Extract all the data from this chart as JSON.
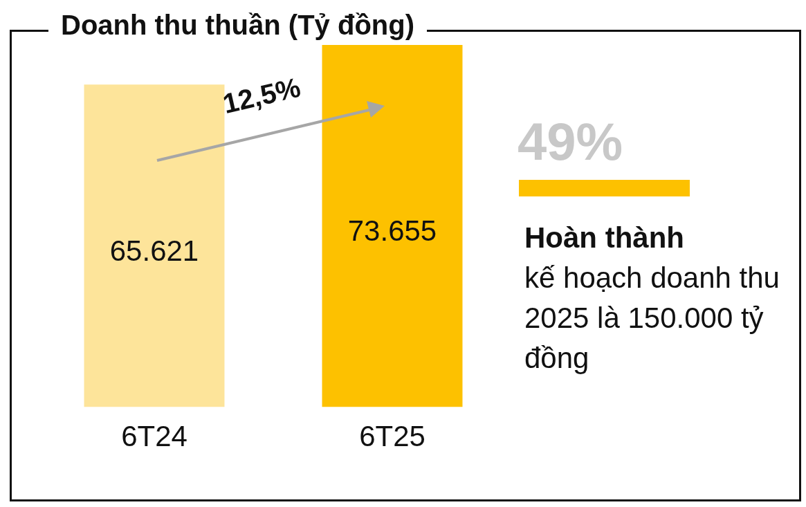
{
  "chart_data": {
    "type": "bar",
    "title": "Doanh thu thuần (Tỷ đồng)",
    "categories": [
      "6T24",
      "6T25"
    ],
    "values": [
      65621,
      73655
    ],
    "colors": [
      "#fde49a",
      "#fdc100"
    ],
    "value_labels": [
      "65.621",
      "73.655"
    ],
    "grid": false,
    "legend": false,
    "annotations": [
      "12,5%",
      "49%",
      "Hoàn thành",
      "kế hoạch doanh thu 2025 là 150.000 tỷ đồng"
    ]
  }
}
